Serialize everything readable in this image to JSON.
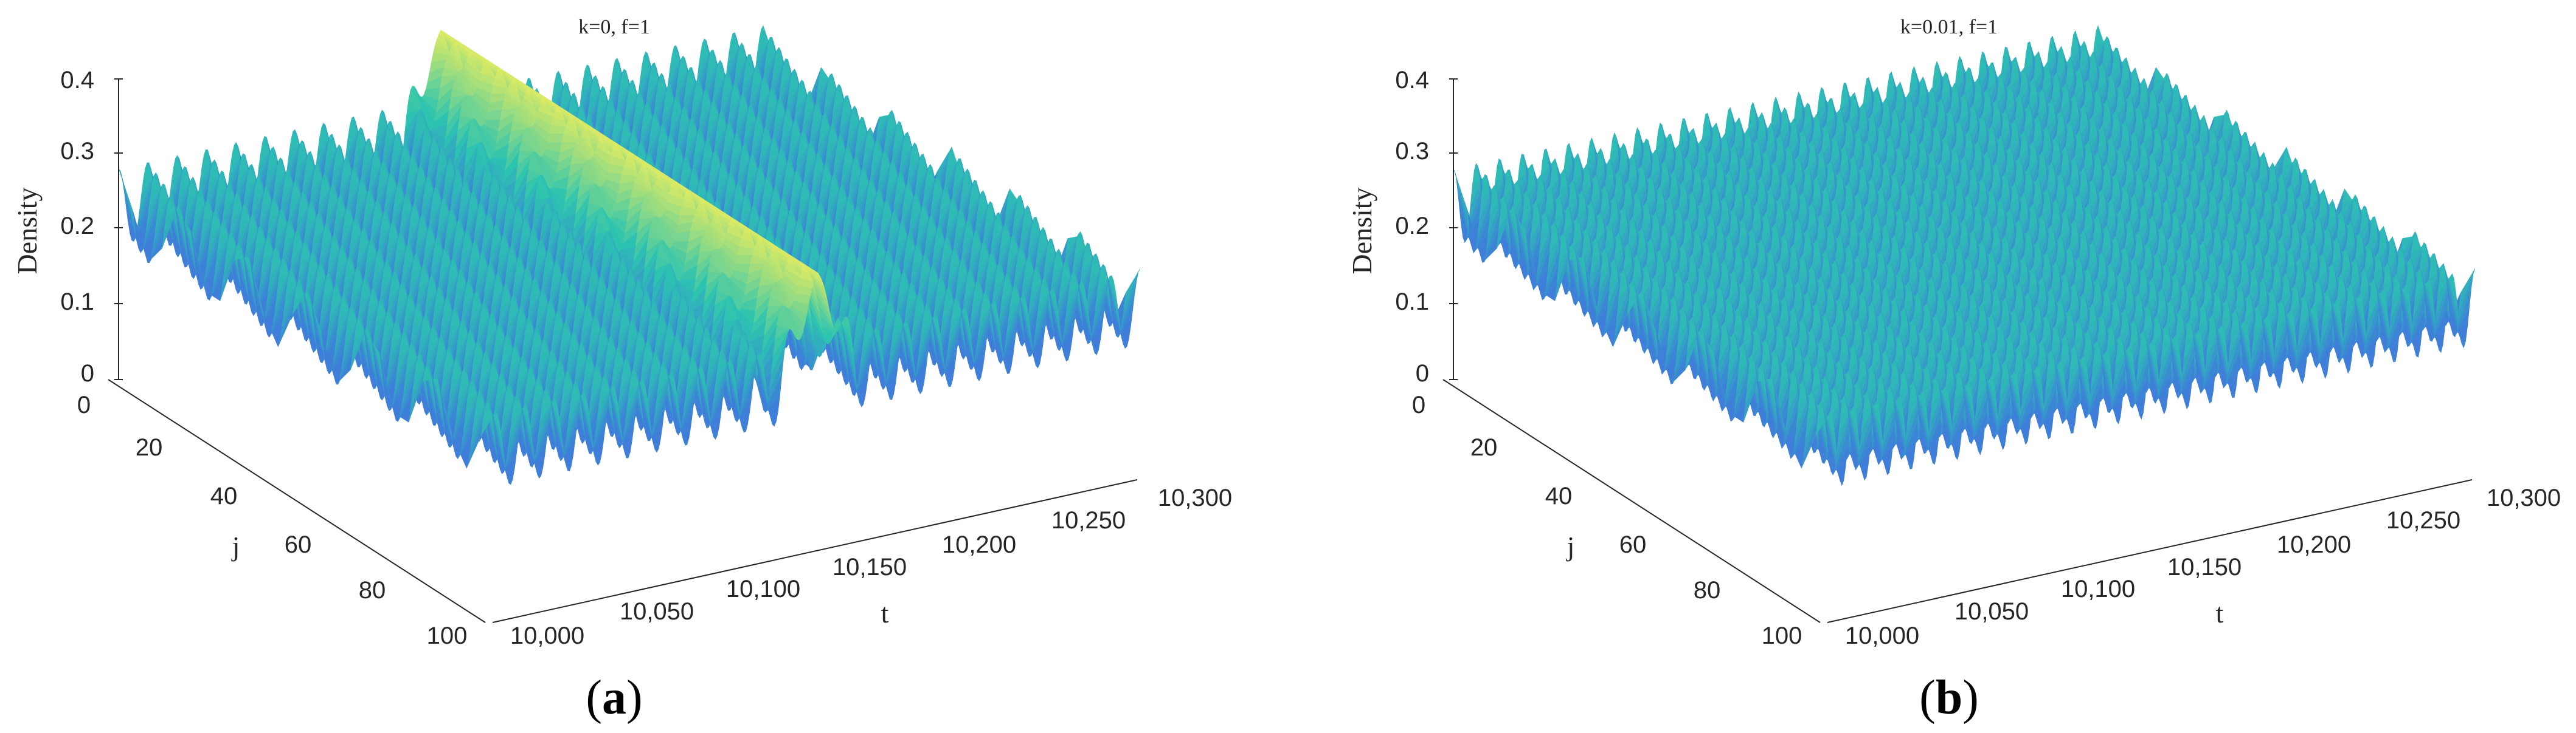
{
  "chart_data": [
    {
      "type": "surface",
      "panel": "a",
      "title": "k=0, f=1",
      "xlabel": "t",
      "ylabel": "j",
      "zlabel": "Density",
      "xlim": [
        10000,
        10300
      ],
      "ylim": [
        0,
        100
      ],
      "zlim": [
        0,
        0.4
      ],
      "xticks": [
        "10,000",
        "10,050",
        "10,100",
        "10,150",
        "10,200",
        "10,250",
        "10,300"
      ],
      "yticks": [
        "0",
        "20",
        "40",
        "60",
        "80",
        "100"
      ],
      "zticks": [
        "0",
        "0.1",
        "0.2",
        "0.3",
        "0.4"
      ],
      "wave": {
        "mean": 0.25,
        "amplitude": 0.12,
        "crests": 22,
        "crest_offset_density": 0.37,
        "shock_center_t_fraction": 0.5
      }
    },
    {
      "type": "surface",
      "panel": "b",
      "title": "k=0.01, f=1",
      "xlabel": "t",
      "ylabel": "j",
      "zlabel": "Density",
      "xlim": [
        10000,
        10300
      ],
      "ylim": [
        0,
        100
      ],
      "zlim": [
        0,
        0.4
      ],
      "xticks": [
        "10,000",
        "10,050",
        "10,100",
        "10,150",
        "10,200",
        "10,250",
        "10,300"
      ],
      "yticks": [
        "0",
        "20",
        "40",
        "60",
        "80",
        "100"
      ],
      "zticks": [
        "0",
        "0.1",
        "0.2",
        "0.3",
        "0.4"
      ],
      "wave": {
        "mean": 0.25,
        "amplitude": 0.12,
        "crests": 28
      }
    }
  ],
  "panel_labels": {
    "a": "a",
    "b": "b"
  },
  "colors": {
    "crest": "#f2ef5a",
    "mid": "#2cc4b0",
    "trough": "#7a6fd6",
    "deep": "#3d7fd9"
  }
}
